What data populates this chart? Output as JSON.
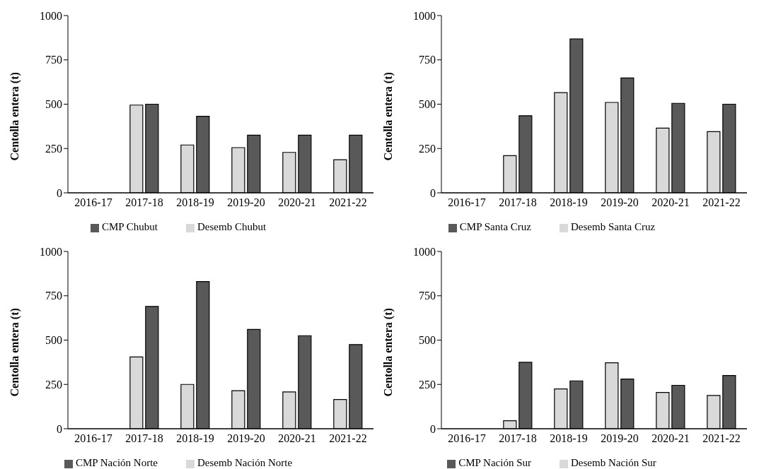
{
  "chart_data": [
    {
      "type": "bar",
      "categories": [
        "2016-17",
        "2017-18",
        "2018-19",
        "2019-20",
        "2020-21",
        "2021-22"
      ],
      "ylabel": "Centolla entera (t)",
      "ylim": [
        0,
        1000
      ],
      "yticks": [
        0,
        250,
        500,
        750,
        1000
      ],
      "legend": "bottom",
      "grid": false,
      "series": [
        {
          "name": "Desemb Chubut",
          "color": "#d9d9d9",
          "values": [
            null,
            495,
            270,
            255,
            228,
            187
          ]
        },
        {
          "name": "CMP Chubut",
          "color": "#595959",
          "values": [
            null,
            500,
            432,
            325,
            325,
            325
          ]
        }
      ]
    },
    {
      "type": "bar",
      "categories": [
        "2016-17",
        "2017-18",
        "2018-19",
        "2019-20",
        "2020-21",
        "2021-22"
      ],
      "ylabel": "Centolla entera (t)",
      "ylim": [
        0,
        1000
      ],
      "yticks": [
        0,
        250,
        500,
        750,
        1000
      ],
      "legend": "bottom",
      "grid": false,
      "series": [
        {
          "name": "Desemb Santa Cruz",
          "color": "#d9d9d9",
          "values": [
            null,
            210,
            565,
            510,
            365,
            345
          ]
        },
        {
          "name": "CMP Santa Cruz",
          "color": "#595959",
          "values": [
            null,
            435,
            868,
            648,
            505,
            500
          ]
        }
      ]
    },
    {
      "type": "bar",
      "categories": [
        "2016-17",
        "2017-18",
        "2018-19",
        "2019-20",
        "2020-21",
        "2021-22"
      ],
      "ylabel": "Centolla entera (t)",
      "ylim": [
        0,
        1000
      ],
      "yticks": [
        0,
        250,
        500,
        750,
        1000
      ],
      "legend": "bottom",
      "grid": false,
      "series": [
        {
          "name": "Desemb Nación Norte",
          "color": "#d9d9d9",
          "values": [
            null,
            405,
            250,
            215,
            208,
            165
          ]
        },
        {
          "name": "CMP Nación Norte",
          "color": "#595959",
          "values": [
            null,
            690,
            830,
            560,
            525,
            475
          ]
        }
      ]
    },
    {
      "type": "bar",
      "categories": [
        "2016-17",
        "2017-18",
        "2018-19",
        "2019-20",
        "2020-21",
        "2021-22"
      ],
      "ylabel": "Centolla entera (t)",
      "ylim": [
        0,
        1000
      ],
      "yticks": [
        0,
        250,
        500,
        750,
        1000
      ],
      "legend": "bottom",
      "grid": false,
      "series": [
        {
          "name": "Desemb Nación Sur",
          "color": "#d9d9d9",
          "values": [
            null,
            45,
            225,
            372,
            205,
            188
          ]
        },
        {
          "name": "CMP Nación Sur",
          "color": "#595959",
          "values": [
            null,
            375,
            270,
            280,
            245,
            300
          ]
        }
      ]
    }
  ]
}
